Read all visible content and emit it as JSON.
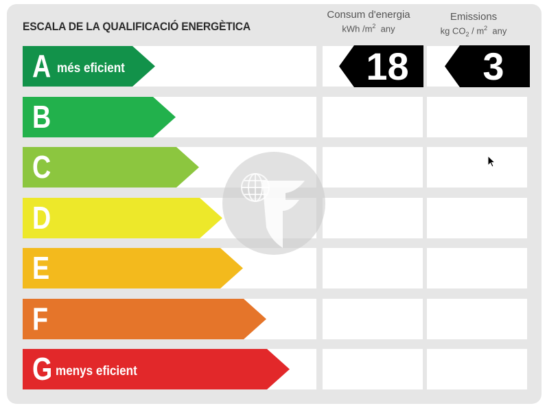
{
  "header": {
    "title": "ESCALA DE LA QUALIFICACIÓ ENERGÈTICA",
    "energy_col": {
      "title": "Consum d'energia",
      "unit_prefix": "kWh /m",
      "unit_sup": "2",
      "unit_suffix": "  any"
    },
    "emissions_col": {
      "title": "Emissions",
      "unit_prefix": "kg CO",
      "unit_sub": "2",
      "unit_mid": " / m",
      "unit_sup": "2",
      "unit_suffix": "  any"
    }
  },
  "scale": [
    {
      "letter": "A",
      "caption": "més eficient",
      "color": "#12924a",
      "length_fraction": 0.45
    },
    {
      "letter": "B",
      "caption": "",
      "color": "#22b14c",
      "length_fraction": 0.52
    },
    {
      "letter": "C",
      "caption": "",
      "color": "#8cc63f",
      "length_fraction": 0.6
    },
    {
      "letter": "D",
      "caption": "",
      "color": "#ede82a",
      "length_fraction": 0.68
    },
    {
      "letter": "E",
      "caption": "",
      "color": "#f3ba1d",
      "length_fraction": 0.75
    },
    {
      "letter": "F",
      "caption": "",
      "color": "#e5752a",
      "length_fraction": 0.83
    },
    {
      "letter": "G",
      "caption": "menys eficient",
      "color": "#e2282a",
      "length_fraction": 0.91
    }
  ],
  "rating": {
    "class": "A",
    "energy_value": "18",
    "emissions_value": "3"
  },
  "colors": {
    "panel": "#e6e6e6",
    "tag": "#000000",
    "watermark": "#c8c8c8"
  }
}
